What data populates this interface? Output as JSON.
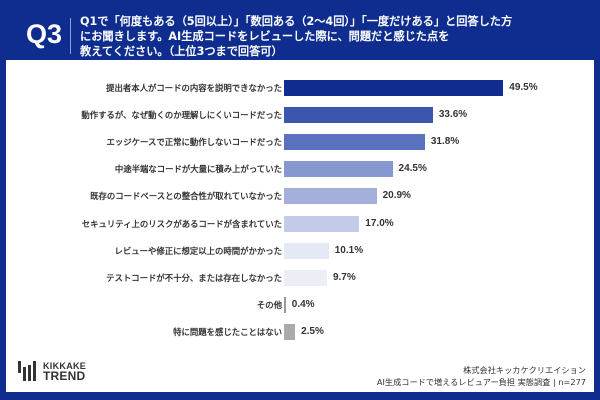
{
  "header": {
    "question_number": "Q3",
    "question_lines": [
      "Q1で「何度もある（5回以上）」「数回ある（2〜4回）」「一度だけある」と回答した方",
      "にお聞きします。AI生成コードをレビューした際に、問題だと感じた点を",
      "教えてください。（上位3つまで回答可）"
    ]
  },
  "colors": {
    "frame": "#0e2d8f",
    "panel": "#ffffff",
    "bar_shades": [
      "#0f2c8e",
      "#3a56ad",
      "#5a72bd",
      "#8798d0",
      "#a5afdc",
      "#c3cbe8",
      "#e5e9f6",
      "#eceef5",
      "#9a9a9a",
      "#aaaaaa"
    ]
  },
  "chart_data": {
    "type": "bar",
    "orientation": "horizontal",
    "title": "Q1で「何度もある（5回以上）」「数回ある（2〜4回）」「一度だけある」と回答した方にお聞きします。AI生成コードをレビューした際に、問題だと感じた点を教えてください。（上位3つまで回答可）",
    "categories": [
      "提出者本人がコードの内容を説明できなかった",
      "動作するが、なぜ動くのか理解しにくいコードだった",
      "エッジケースで正常に動作しないコードだった",
      "中途半端なコードが大量に積み上がっていた",
      "既存のコードベースとの整合性が取れていなかった",
      "セキュリティ上のリスクがあるコードが含まれていた",
      "レビューや修正に想定以上の時間がかかった",
      "テストコードが不十分、または存在しなかった",
      "その他",
      "特に問題を感じたことはない"
    ],
    "values": [
      49.5,
      33.6,
      31.8,
      24.5,
      20.9,
      17.0,
      10.1,
      9.7,
      0.4,
      2.5
    ],
    "value_labels": [
      "49.5%",
      "33.6%",
      "31.8%",
      "24.5%",
      "20.9%",
      "17.0%",
      "10.1%",
      "9.7%",
      "0.4%",
      "2.5%"
    ],
    "unit": "%",
    "xlabel": "",
    "ylabel": "",
    "grid": false,
    "legend": null
  },
  "footer": {
    "logo_line1": "KIKKAKE",
    "logo_line2": "TREND",
    "company": "株式会社キッカケクリエイション",
    "survey": "AI生成コードで増えるレビュアー負担 実態調査 | n=277"
  }
}
